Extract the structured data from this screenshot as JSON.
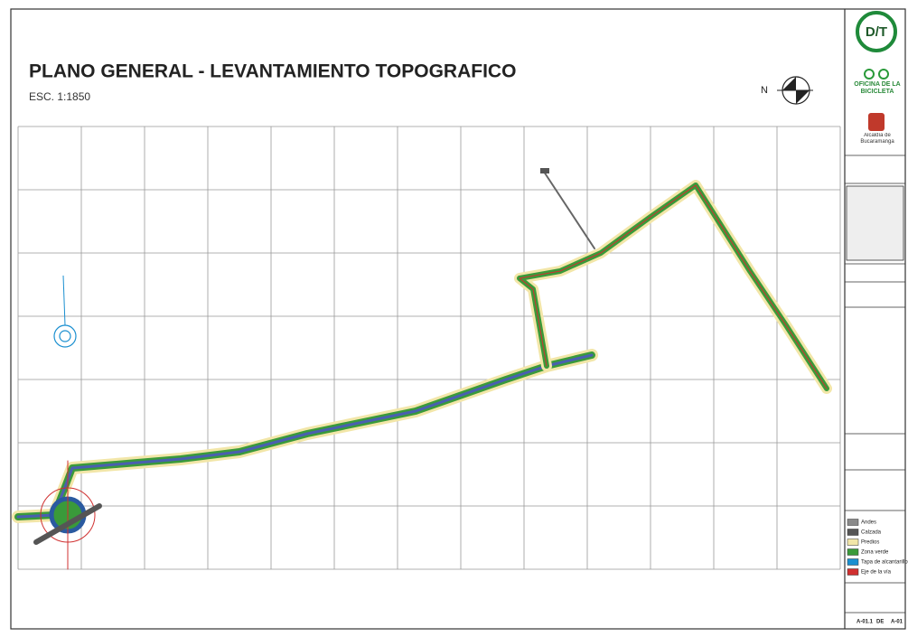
{
  "header": {
    "title": "PLANO GENERAL - LEVANTAMIENTO TOPOGRAFICO",
    "scale": "ESC. 1:1850",
    "north": "N"
  },
  "logos": {
    "dt": "D/T",
    "bike_office": "OFICINA DE LA BICICLETA",
    "city": "Alcaldía de Bucaramanga"
  },
  "legend": {
    "items": [
      {
        "label": "Andes",
        "color": "#8a8a8a"
      },
      {
        "label": "Calzada",
        "color": "#555555"
      },
      {
        "label": "Predios",
        "color": "#f2e6a8"
      },
      {
        "label": "Zona verde",
        "color": "#3a9a3a"
      },
      {
        "label": "Tapa de alcantarillo",
        "color": "#1a8fd0"
      },
      {
        "label": "Eje de la vía",
        "color": "#d03030"
      }
    ]
  },
  "sheet": {
    "number": "A-01.1",
    "of": "DE",
    "total": "A-01"
  }
}
